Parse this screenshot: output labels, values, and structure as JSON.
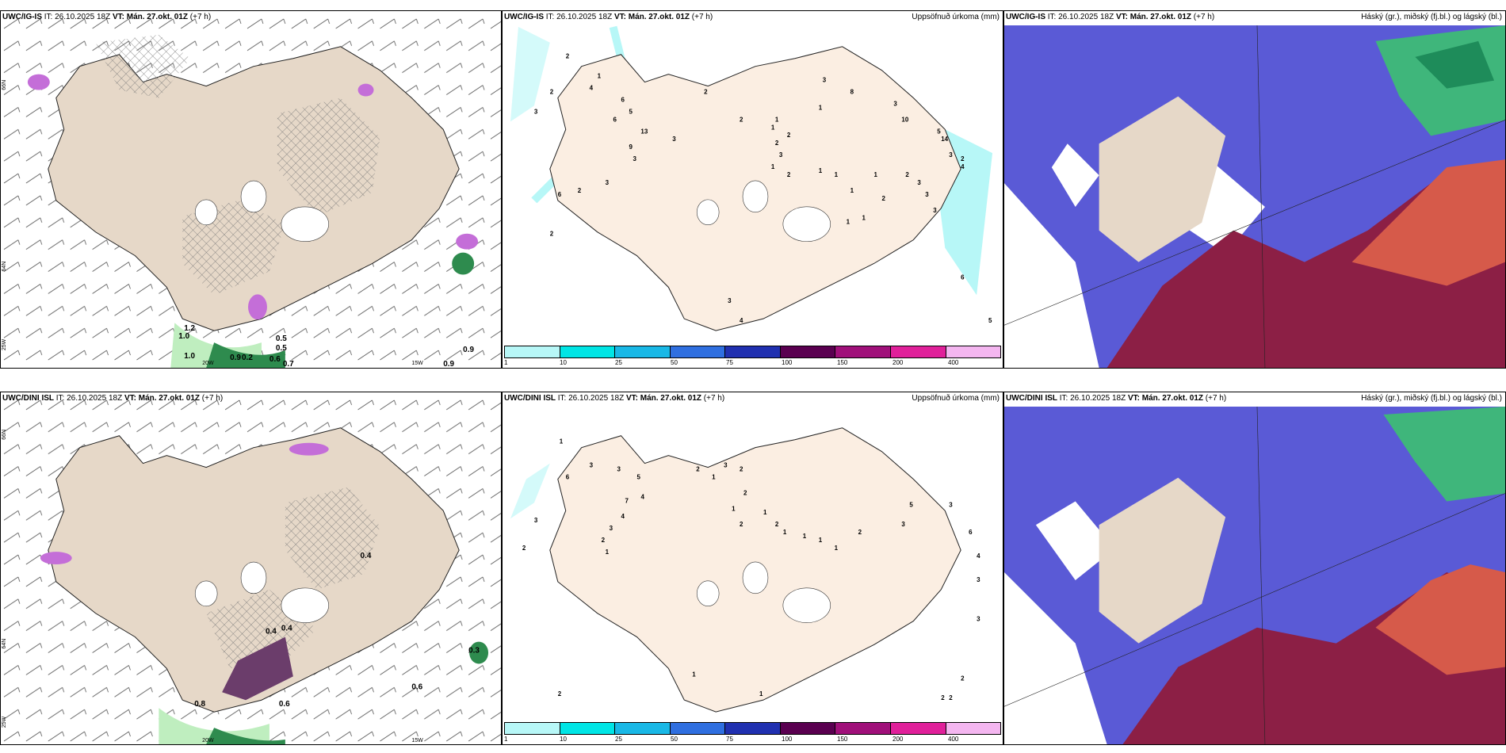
{
  "rows": [
    {
      "left": {
        "model": "UWC/IG-IS",
        "it": "IT: 26.10.2025 18Z",
        "vt_label": "VT:",
        "vt": "Mán. 27.okt. 01Z",
        "lead": "(+7 h)"
      },
      "mid": {
        "model": "UWC/IG-IS",
        "it": "IT: 26.10.2025 18Z",
        "vt_label": "VT:",
        "vt": "Mán. 27.okt. 01Z",
        "lead": "(+7 h)",
        "title": "Uppsöfnuð úrkoma (mm)"
      },
      "right": {
        "model": "UWC/IG-IS",
        "it": "IT: 26.10.2025 18Z",
        "vt_label": "VT:",
        "vt": "Mán. 27.okt. 01Z",
        "lead": "(+7 h)",
        "title": "Háský (gr.), miðský (fj.bl.) og lágský (bl.)"
      }
    },
    {
      "left": {
        "model": "UWC/DINI ISL",
        "it": "IT: 26.10.2025 18Z",
        "vt_label": "VT:",
        "vt": "Mán. 27.okt. 01Z",
        "lead": "(+7 h)"
      },
      "mid": {
        "model": "UWC/DINI ISL",
        "it": "IT: 26.10.2025 18Z",
        "vt_label": "VT:",
        "vt": "Mán. 27.okt. 01Z",
        "lead": "(+7 h)",
        "title": "Uppsöfnuð úrkoma (mm)"
      },
      "right": {
        "model": "UWC/DINI ISL",
        "it": "IT: 26.10.2025 18Z",
        "vt_label": "VT:",
        "vt": "Mán. 27.okt. 01Z",
        "lead": "(+7 h)",
        "title": "Háský (gr.), miðský (fj.bl.) og lágský (bl.)"
      }
    }
  ],
  "axis_labels": {
    "lat66": "66N",
    "lat64": "64N",
    "lon25": "25W",
    "lon20": "20W",
    "lon15": "15W"
  },
  "precip_values_top": [
    "1.2",
    "1.0",
    "0.5",
    "1.0",
    "0.9",
    "0.2",
    "0.6",
    "0.5",
    "0.7",
    "0.9",
    "0.9"
  ],
  "precip_values_bottom": [
    "0.8",
    "0.6",
    "0.6",
    "0.3",
    "0.4",
    "0.4",
    "0.4"
  ],
  "colorbar": {
    "labels": [
      "1",
      "10",
      "25",
      "50",
      "75",
      "100",
      "150",
      "200",
      "400"
    ],
    "colors": [
      "#b7f7f7",
      "#00e5e5",
      "#19b8e6",
      "#2f6fe0",
      "#2030b0",
      "#5a0050",
      "#a0107a",
      "#e0209a",
      "#f4b6f0"
    ]
  },
  "accum_top": [
    "2",
    "2",
    "3",
    "1",
    "4",
    "6",
    "5",
    "6",
    "13",
    "9",
    "3",
    "3",
    "6",
    "2",
    "3",
    "2",
    "2",
    "2",
    "1",
    "1",
    "2",
    "2",
    "3",
    "1",
    "2",
    "1",
    "8",
    "10",
    "5",
    "14",
    "3",
    "4",
    "2",
    "1",
    "1",
    "1",
    "1",
    "2",
    "3",
    "3",
    "3",
    "1",
    "3",
    "4",
    "5",
    "6",
    "2",
    "3",
    "3",
    "1"
  ],
  "accum_bottom": [
    "1",
    "3",
    "2",
    "3",
    "7",
    "4",
    "3",
    "2",
    "1",
    "3",
    "5",
    "4",
    "2",
    "1",
    "3",
    "2",
    "2",
    "1",
    "1",
    "2",
    "2",
    "1",
    "1",
    "1",
    "1",
    "2",
    "3",
    "5",
    "3",
    "6",
    "4",
    "3",
    "3",
    "2",
    "2",
    "2",
    "1",
    "1",
    "6",
    "2"
  ],
  "colors": {
    "land": "#e6d8c8",
    "land_mid": "#fbeee2",
    "cloud_high": "#3fb67b",
    "cloud_mid": "#8c1f45",
    "cloud_low": "#5a5ad6",
    "precip_mag": "#c46ed8"
  }
}
